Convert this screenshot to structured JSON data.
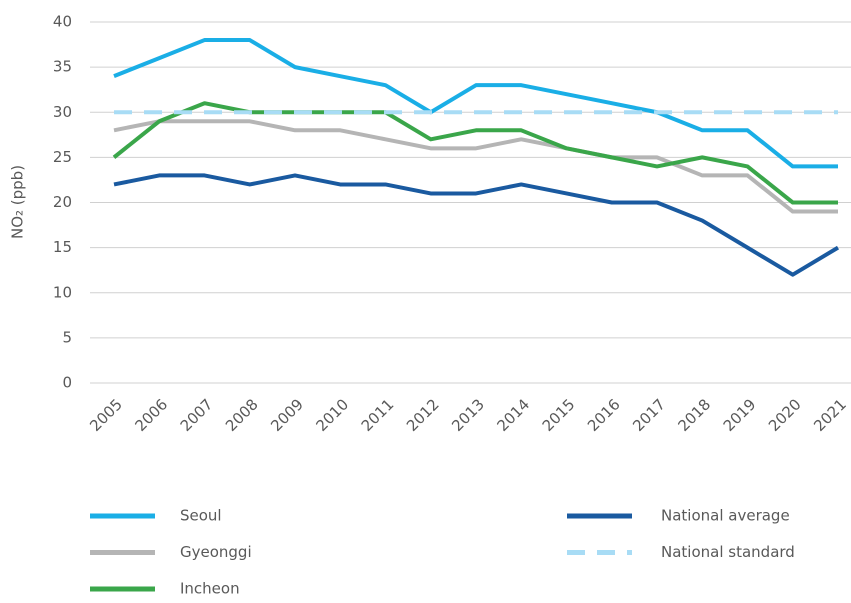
{
  "chart_data": {
    "type": "line",
    "y_label": "NO₂ (ppb)",
    "categories": [
      "2005",
      "2006",
      "2007",
      "2008",
      "2009",
      "2010",
      "2011",
      "2012",
      "2013",
      "2014",
      "2015",
      "2016",
      "2017",
      "2018",
      "2019",
      "2020",
      "2021"
    ],
    "series": [
      {
        "name": "Seoul",
        "color": "#1aaee6",
        "dashed": false,
        "values": [
          34,
          36,
          38,
          38,
          35,
          34,
          33,
          30,
          33,
          33,
          32,
          31,
          30,
          28,
          28,
          24,
          24
        ]
      },
      {
        "name": "Gyeonggi",
        "color": "#b5b5b5",
        "dashed": false,
        "values": [
          28,
          29,
          29,
          29,
          28,
          28,
          27,
          26,
          26,
          27,
          26,
          25,
          25,
          23,
          23,
          19,
          19
        ]
      },
      {
        "name": "Incheon",
        "color": "#3aa64a",
        "dashed": false,
        "values": [
          25,
          29,
          31,
          30,
          30,
          30,
          30,
          27,
          28,
          28,
          26,
          25,
          24,
          25,
          24,
          20,
          20
        ]
      },
      {
        "name": "National average",
        "color": "#1a5aa0",
        "dashed": false,
        "values": [
          22,
          23,
          23,
          22,
          23,
          22,
          22,
          21,
          21,
          22,
          21,
          20,
          20,
          18,
          15,
          12,
          15
        ]
      },
      {
        "name": "National standard",
        "color": "#a8dcf5",
        "dashed": true,
        "values": [
          30,
          30,
          30,
          30,
          30,
          30,
          30,
          30,
          30,
          30,
          30,
          30,
          30,
          30,
          30,
          30,
          30
        ]
      }
    ],
    "ylim": [
      0,
      40
    ],
    "yticks": [
      0,
      5,
      10,
      15,
      20,
      25,
      30,
      35,
      40
    ],
    "grid": true
  }
}
